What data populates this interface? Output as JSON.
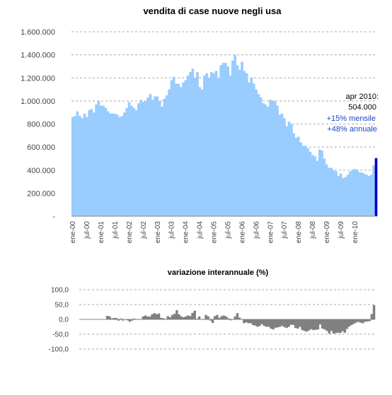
{
  "chart_data": [
    {
      "type": "bar",
      "title": "vendita di case nuove negli usa",
      "ylim": [
        0,
        1600000
      ],
      "yticks": [
        0,
        200000,
        400000,
        600000,
        800000,
        1000000,
        1200000,
        1400000,
        1600000
      ],
      "ytick_labels": [
        "-",
        "200.000",
        "400.000",
        "600.000",
        "800.000",
        "1.000.000",
        "1.200.000",
        "1.400.000",
        "1.600.000"
      ],
      "xtick_labels": [
        "ene-00",
        "jul-00",
        "ene-01",
        "jul-01",
        "ene-02",
        "jul-02",
        "ene-03",
        "jul-03",
        "ene-04",
        "jul-04",
        "ene-05",
        "jul-05",
        "ene-06",
        "jul-06",
        "ene-07",
        "jul-07",
        "ene-08",
        "jul-08",
        "ene-09",
        "jul-09",
        "ene-10"
      ],
      "grid": true,
      "colors": {
        "bars": "#99ccff",
        "highlight": "#0000cc"
      },
      "series": [
        {
          "values": [
            860000,
            870000,
            910000,
            870000,
            850000,
            890000,
            860000,
            920000,
            930000,
            900000,
            970000,
            1000000,
            960000,
            960000,
            940000,
            910000,
            890000,
            890000,
            890000,
            880000,
            860000,
            870000,
            900000,
            940000,
            990000,
            960000,
            940000,
            920000,
            980000,
            1010000,
            990000,
            1000000,
            1030000,
            1060000,
            1010000,
            1040000,
            1040000,
            1000000,
            950000,
            1020000,
            1050000,
            1100000,
            1180000,
            1210000,
            1150000,
            1150000,
            1120000,
            1160000,
            1180000,
            1220000,
            1250000,
            1280000,
            1200000,
            1250000,
            1120000,
            1100000,
            1220000,
            1240000,
            1200000,
            1250000,
            1240000,
            1260000,
            1200000,
            1310000,
            1330000,
            1330000,
            1300000,
            1220000,
            1350000,
            1400000,
            1310000,
            1270000,
            1340000,
            1260000,
            1240000,
            1160000,
            1200000,
            1150000,
            1100000,
            1060000,
            1030000,
            980000,
            970000,
            950000,
            1010000,
            1000000,
            1000000,
            960000,
            880000,
            890000,
            850000,
            780000,
            820000,
            800000,
            720000,
            680000,
            690000,
            640000,
            610000,
            610000,
            590000,
            560000,
            530000,
            520000,
            480000,
            580000,
            570000,
            500000,
            450000,
            420000,
            420000,
            400000,
            390000,
            350000,
            370000,
            330000,
            340000,
            360000,
            390000,
            400000,
            410000,
            400000,
            380000,
            380000,
            370000,
            360000,
            350000,
            360000,
            440000,
            504000
          ]
        }
      ],
      "annotation": [
        "apr 2010:",
        "504.000",
        "+15% mensile",
        "+48% annuale"
      ]
    },
    {
      "type": "bar",
      "title": "variazione interannuale (%)",
      "ylim": [
        -100,
        100
      ],
      "yticks": [
        -100,
        -50,
        0,
        50,
        100
      ],
      "ytick_labels": [
        "-100,0",
        "-50,0",
        "0,0",
        "50,0",
        "100,0"
      ],
      "grid": true,
      "colors": {
        "bars": "#808080"
      },
      "series": [
        {
          "values": [
            null,
            null,
            null,
            null,
            null,
            null,
            null,
            null,
            null,
            null,
            null,
            null,
            12,
            10,
            3,
            5,
            5,
            -4,
            3,
            -4,
            1,
            -3,
            -8,
            -4,
            3,
            0,
            0,
            1,
            10,
            13,
            10,
            9,
            17,
            21,
            17,
            20,
            5,
            4,
            1,
            11,
            7,
            15,
            19,
            31,
            17,
            10,
            7,
            10,
            13,
            11,
            22,
            29,
            2,
            10,
            1,
            -1,
            15,
            10,
            -4,
            -12,
            11,
            15,
            5,
            11,
            13,
            10,
            4,
            -3,
            0,
            10,
            21,
            6,
            0,
            -13,
            -10,
            -13,
            -13,
            -19,
            -21,
            -25,
            -22,
            -16,
            -22,
            -25,
            -25,
            -31,
            -34,
            -28,
            -27,
            -25,
            -22,
            -26,
            -29,
            -25,
            -18,
            -19,
            -29,
            -31,
            -25,
            -36,
            -39,
            -41,
            -37,
            -33,
            -36,
            -35,
            -34,
            -17,
            -31,
            -34,
            -39,
            -48,
            -39,
            -48,
            -46,
            -45,
            -46,
            -40,
            -45,
            -32,
            -24,
            -19,
            -15,
            -11,
            -8,
            -11,
            -13,
            -8,
            -7,
            -6,
            18,
            48
          ]
        }
      ]
    }
  ]
}
